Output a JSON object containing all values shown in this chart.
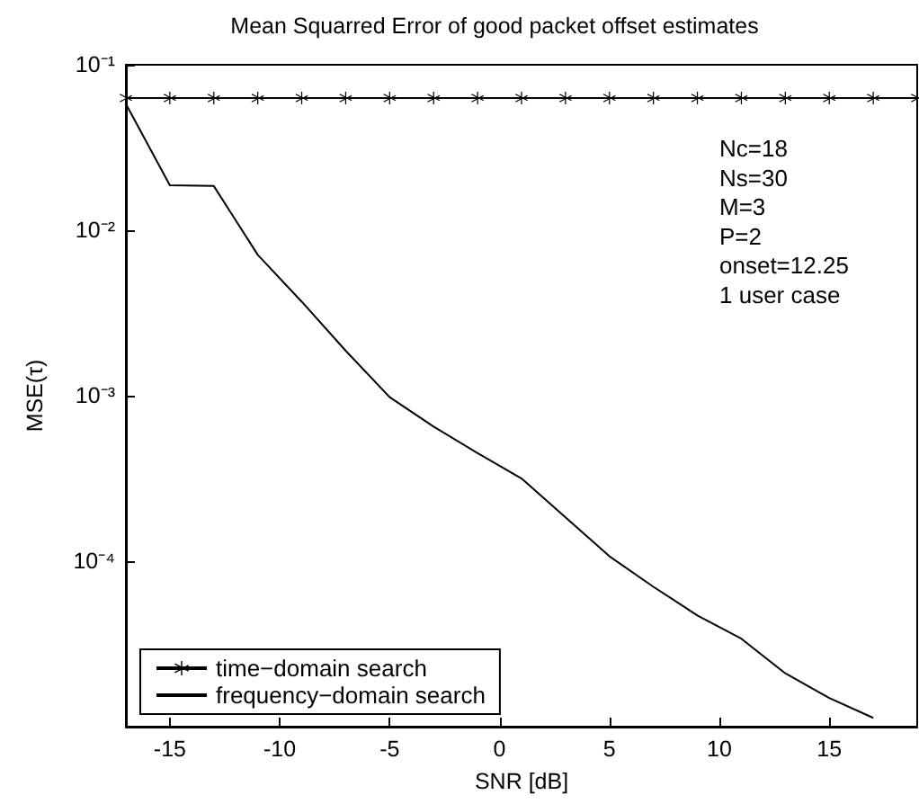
{
  "chart_data": {
    "type": "line",
    "title": "Mean Squarred Error of good packet offset estimates",
    "xlabel": "SNR [dB]",
    "ylabel": "MSE(τ)",
    "x": [
      -17,
      -15,
      -13,
      -11,
      -9,
      -7,
      -5,
      -3,
      -1,
      1,
      3,
      5,
      7,
      9,
      11,
      13,
      15,
      17
    ],
    "series": [
      {
        "name": "time−domain search",
        "color": "#000000",
        "marker": "cross",
        "x": [
          -17,
          -15,
          -13,
          -11,
          -9,
          -7,
          -5,
          -3,
          -1,
          1,
          3,
          5,
          7,
          9,
          11,
          13,
          15,
          17,
          19
        ],
        "values": [
          0.063,
          0.063,
          0.063,
          0.063,
          0.063,
          0.063,
          0.063,
          0.063,
          0.063,
          0.063,
          0.063,
          0.063,
          0.063,
          0.063,
          0.063,
          0.063,
          0.063,
          0.063,
          0.063
        ]
      },
      {
        "name": "frequency−domain search",
        "color": "#000000",
        "marker": "none",
        "values": [
          0.058,
          0.0187,
          0.0185,
          0.0071,
          0.0037,
          0.00187,
          0.00098,
          0.00065,
          0.00045,
          0.000316,
          0.000184,
          0.000107,
          7e-05,
          4.7e-05,
          3.4e-05,
          2.1e-05,
          1.49e-05,
          1.13e-05
        ]
      }
    ],
    "xlim": [
      -17,
      19
    ],
    "xticks": [
      -15,
      -10,
      -5,
      0,
      5,
      10,
      15
    ],
    "ylim": [
      1e-05,
      0.1
    ],
    "yticks": [
      {
        "value": 0.0001,
        "label": "10⁻⁴"
      },
      {
        "value": 0.001,
        "label": "10⁻³"
      },
      {
        "value": 0.01,
        "label": "10⁻²"
      },
      {
        "value": 0.1,
        "label": "10⁻¹"
      }
    ],
    "log": "y",
    "grid": false,
    "legend": "bottom left",
    "line_style": "solid",
    "annotations": [
      "Nc=18",
      "Ns=30",
      "M=3",
      "P=2",
      "onset=12.25",
      "1 user case"
    ]
  }
}
